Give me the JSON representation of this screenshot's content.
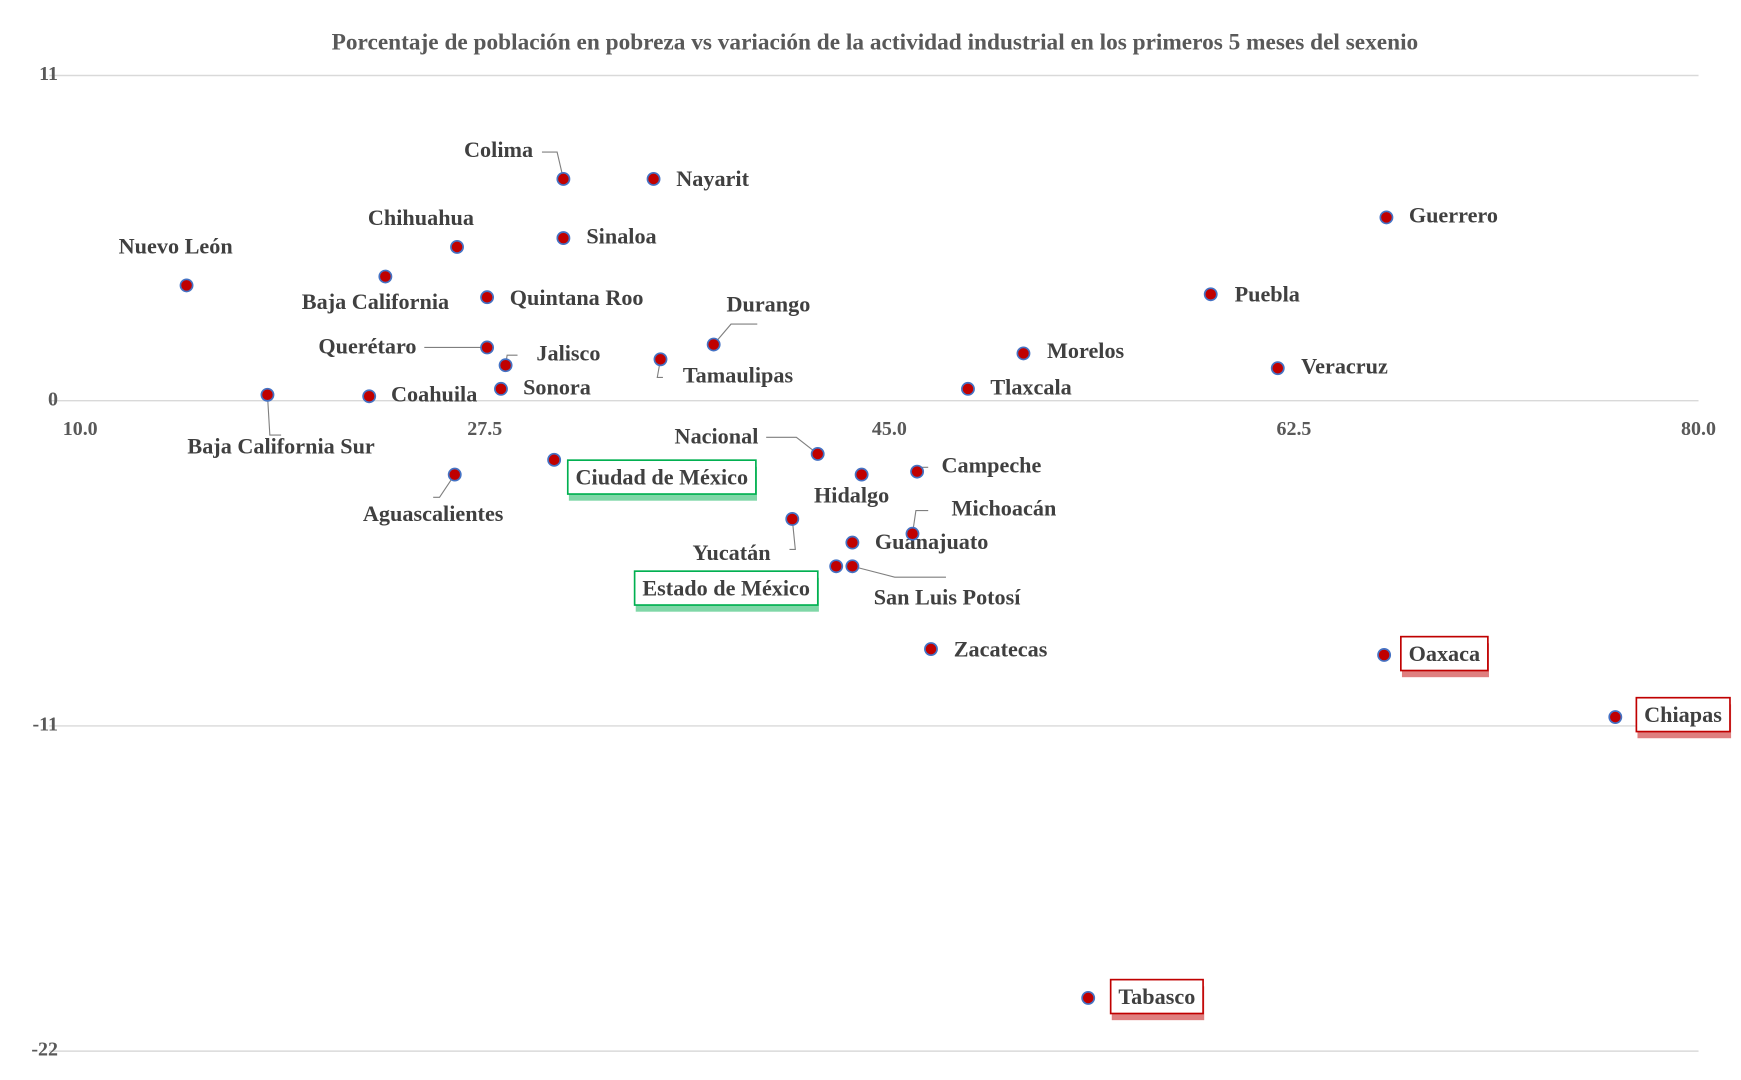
{
  "chart_data": {
    "type": "scatter",
    "title": "Porcentaje de población en pobreza vs variación de la actividad industrial en los primeros 5 meses del sexenio",
    "labels": [
      "Nuevo León",
      "Baja California Sur",
      "Coahuila",
      "Baja California",
      "Chihuahua",
      "Aguascalientes",
      "Quintana Roo",
      "Querétaro",
      "Jalisco",
      "Sonora",
      "Colima",
      "Sinaloa",
      "Ciudad de México",
      "Nayarit",
      "Tamaulipas",
      "Durango",
      "Yucatán",
      "Nacional",
      "Estado de México",
      "San Luis Potosí",
      "Guanajuato",
      "Hidalgo",
      "Michoacán",
      "Campeche",
      "Zacatecas",
      "Tlaxcala",
      "Morelos",
      "Tabasco",
      "Puebla",
      "Veracruz",
      "Oaxaca",
      "Guerrero",
      "Chiapas"
    ],
    "x": [
      14.6,
      18.1,
      22.5,
      23.2,
      26.3,
      26.2,
      27.6,
      27.6,
      28.4,
      28.2,
      30.9,
      30.9,
      30.5,
      34.8,
      35.1,
      37.4,
      40.8,
      41.9,
      42.7,
      43.4,
      43.4,
      43.8,
      46.0,
      46.2,
      46.8,
      48.4,
      50.8,
      53.6,
      58.9,
      61.8,
      66.4,
      66.5,
      76.4
    ],
    "y": [
      3.9,
      0.2,
      0.15,
      4.2,
      5.2,
      -2.5,
      3.5,
      1.8,
      1.2,
      0.4,
      7.5,
      5.5,
      -2.0,
      7.5,
      1.4,
      1.9,
      -4.0,
      -1.8,
      -5.6,
      -5.6,
      -4.8,
      -2.5,
      -4.5,
      -2.4,
      -8.4,
      0.4,
      1.6,
      -20.2,
      3.6,
      1.1,
      -8.6,
      6.2,
      -10.7
    ],
    "marker_color": "#c00000",
    "marker_edge_color": "#4472c4",
    "xlim": [
      10,
      80
    ],
    "xticks": [
      {
        "value": 10,
        "label": "10.0"
      },
      27.5,
      {
        "value": 45,
        "label": "45.0"
      },
      62.5,
      {
        "value": 80,
        "label": "80.0"
      }
    ],
    "ylim": [
      -22,
      11
    ],
    "yticks": [
      -22,
      -11,
      0,
      11
    ],
    "grid": true
  }
}
